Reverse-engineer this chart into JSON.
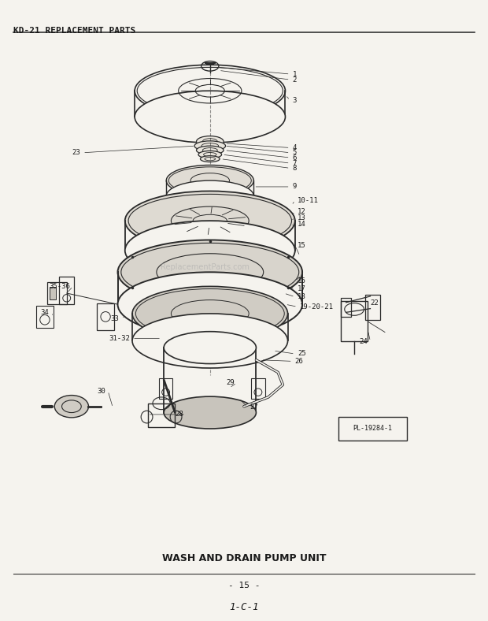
{
  "title_text": "KD-21 REPLACEMENT PARTS",
  "caption": "WASH AND DRAIN PUMP UNIT",
  "page_number": "- 15 -",
  "footer_code": "1-C-1",
  "plate_label": "PL-19284-1",
  "bg_color": "#f5f3ee",
  "text_color": "#1a1a1a",
  "line_color": "#333333",
  "diagram_color": "#2a2a2a",
  "figsize": [
    6.2,
    7.88
  ],
  "dpi": 100,
  "watermark": "ReplacementParts.com"
}
